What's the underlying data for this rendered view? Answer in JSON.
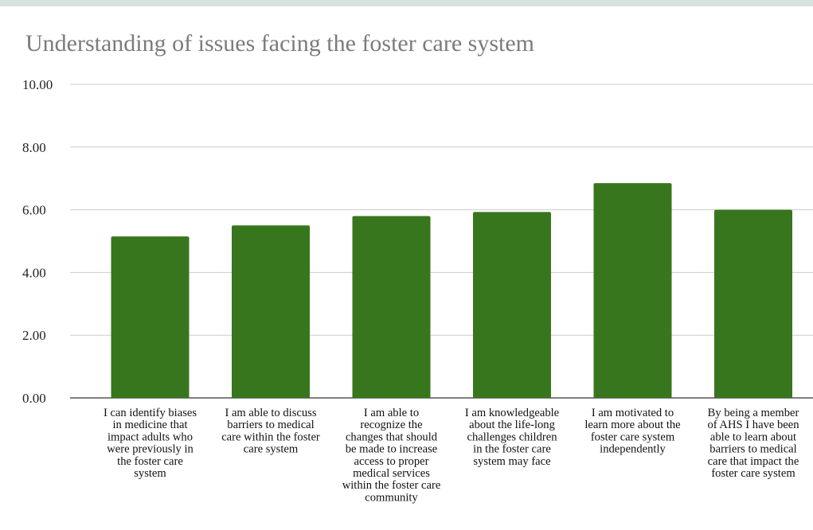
{
  "chart_data": {
    "type": "bar",
    "title": "Understanding of issues facing the foster care system",
    "xlabel": "",
    "ylabel": "",
    "ylim": [
      0,
      10
    ],
    "yticks": [
      "0.00",
      "2.00",
      "4.00",
      "6.00",
      "8.00",
      "10.00"
    ],
    "grid": true,
    "legend": "none",
    "bar_color": "#38761d",
    "categories": [
      [
        "I can identify biases",
        "in medicine that",
        "impact adults who",
        "were previously in",
        "the foster care",
        "system"
      ],
      [
        "I am able to discuss",
        "barriers to medical",
        "care within the foster",
        "care system"
      ],
      [
        "I am able to",
        "recognize the",
        "changes that should",
        "be made to increase",
        "access to proper",
        "medical services",
        "within the foster care",
        "community"
      ],
      [
        "I am knowledgeable",
        "about the life-long",
        "challenges children",
        "in the foster care",
        "system may face"
      ],
      [
        "I am motivated to",
        "learn more about the",
        "foster care system",
        "independently"
      ],
      [
        "By being a member",
        "of AHS I have been",
        "able to learn about",
        "barriers to medical",
        "care that impact the",
        "foster care system"
      ]
    ],
    "values": [
      5.15,
      5.5,
      5.8,
      5.93,
      6.85,
      6.0
    ]
  },
  "colors": {
    "bar": "#38761d",
    "title": "#7b7b7b",
    "grid": "#cccccc",
    "top_strip": "#d7e1df"
  }
}
